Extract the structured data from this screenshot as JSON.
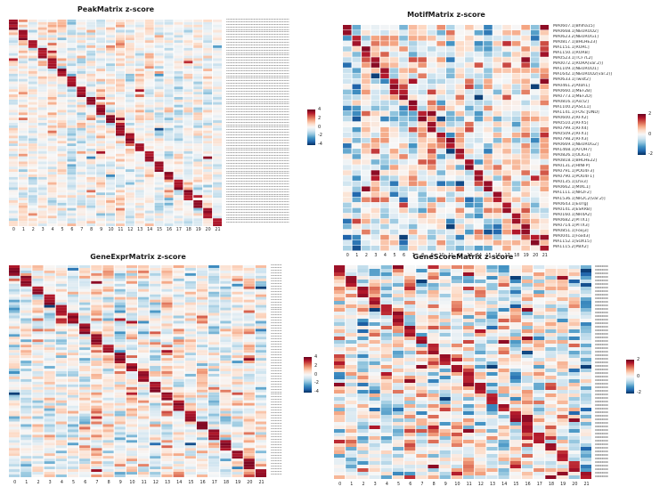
{
  "figure": {
    "background_color": "#ffffff",
    "panel_count": 4
  },
  "colormap_stops": [
    "#053061",
    "#2166ac",
    "#4393c3",
    "#92c5de",
    "#d1e5f0",
    "#f7f7f7",
    "#fddbc7",
    "#f4a582",
    "#d6604d",
    "#b2182b",
    "#67001f"
  ],
  "chart_data": [
    {
      "type": "heatmap",
      "panel": "peak-matrix",
      "title": "PeakMatrix z-score",
      "n_cols": 22,
      "n_rows": 80,
      "x_tick_labels": [
        "0",
        "1",
        "2",
        "3",
        "4",
        "5",
        "6",
        "7",
        "8",
        "9",
        "10",
        "11",
        "12",
        "13",
        "14",
        "15",
        "16",
        "17",
        "18",
        "19",
        "20",
        "21"
      ],
      "row_labels_legible": false,
      "row_label_placeholder": "xxxxxxxxxxxxxxxxxxxxxxxxxxxxxxxxxxxxxxxxxxxxxx",
      "colorbar_ticks": [
        4,
        2,
        0,
        -2,
        -4
      ],
      "zlim": [
        -4.5,
        4.5
      ],
      "structure": "block-diagonal dark-red marker peaks per cluster on pale blue/white background",
      "render_hints": {
        "seed": 11,
        "noise_sd": 0.5,
        "col_bias_sd": 0.22,
        "coarse_mix": 0.3,
        "outlier_p": 0.05,
        "diag_z": 4.3,
        "row_gap": 0
      }
    },
    {
      "type": "heatmap",
      "panel": "motif-matrix",
      "title": "MotifMatrix z-score",
      "n_cols": 22,
      "n_rows": 42,
      "x_tick_labels": [
        "0",
        "1",
        "2",
        "3",
        "4",
        "5",
        "6",
        "7",
        "8",
        "9",
        "10",
        "11",
        "12",
        "13",
        "14",
        "15",
        "16",
        "17",
        "18",
        "19",
        "20",
        "21"
      ],
      "row_labels_legible": true,
      "row_labels": [
        "MA0607.1[Bhlha15]",
        "MA0668.1[NEUROD2]",
        "MA0623.2[NEUROG1]",
        "MA0817.1[BHLHE23]",
        "MA1151.1[RORC]",
        "MA1150.1[RORB]",
        "MA0523.1[TCF7L2]",
        "MA0072.1[RORA(var.2)]",
        "MA1109.1[NEUROD1]",
        "MA1642.1[NEUROD2(var.2)]",
        "MA0633.1[Twist2]",
        "MA0461.2[Atoh1]",
        "MA0660.1[MEF2B]",
        "MA0773.1[MEF2D]",
        "MA0816.1[Ascl2]",
        "MA1100.2[ASCL1]",
        "MA1141.1[FOS::JUND]",
        "MA0600.2[RFX2]",
        "MA0510.2[RFX5]",
        "MA0799.1[RFX4]",
        "MA0509.2[RFX1]",
        "MA0798.2[RFX3]",
        "MA0669.1[NEUROG2]",
        "MA1468.1[ATOH7]",
        "MA0826.1[OLIG1]",
        "MA0818.1[BHLHE22]",
        "MA0131.2[HINFP]",
        "MA0791.1[POU4F3]",
        "MA0790.1[POU4F1]",
        "MA0135.1[Lhx3]",
        "MA0662.1[MIXL1]",
        "MA1111.1[NR2F2]",
        "MA1536.1[NR2C2(var.2)]",
        "MA0643.1[Esrrg]",
        "MA0141.3[ESRRB]",
        "MA0160.1[NR4A2]",
        "MA0682.2[PITX1]",
        "MA0714.1[PITX3]",
        "MA0851.1[Foxj3]",
        "MA0041.1[Foxd3]",
        "MA1152.1[SOX15]",
        "MA1115.2[PBX2]"
      ],
      "colorbar_ticks": [
        2,
        0,
        -2
      ],
      "zlim": [
        -2.8,
        2.8
      ],
      "structure": "blocky diverging red/blue motif deviations with near-diagonal dark-red enrichment blocks",
      "render_hints": {
        "seed": 7,
        "noise_sd": 0.9,
        "col_bias_sd": 0.5,
        "coarse_mix": 0.55,
        "outlier_p": 0.08,
        "diag_z": 2.6,
        "row_gap": 0.5
      }
    },
    {
      "type": "heatmap",
      "panel": "gene-expr-matrix",
      "title": "GeneExprMatrix z-score",
      "n_cols": 22,
      "n_rows": 80,
      "x_tick_labels": [
        "0",
        "1",
        "2",
        "3",
        "4",
        "5",
        "6",
        "7",
        "8",
        "9",
        "10",
        "11",
        "12",
        "13",
        "14",
        "15",
        "16",
        "17",
        "18",
        "19",
        "20",
        "21"
      ],
      "row_labels_legible": false,
      "row_label_placeholder": "xxxxxxxx",
      "colorbar_ticks": [
        4,
        2,
        0,
        -2,
        -4
      ],
      "zlim": [
        -4.5,
        4.5
      ],
      "structure": "block-diagonal dark-red marker genes per cluster on pale background",
      "render_hints": {
        "seed": 23,
        "noise_sd": 0.65,
        "col_bias_sd": 0.2,
        "coarse_mix": 0.35,
        "outlier_p": 0.07,
        "diag_z": 4.3,
        "row_gap": 0
      }
    },
    {
      "type": "heatmap",
      "panel": "gene-score-matrix",
      "title": "GeneScoreMatrix z-score",
      "n_cols": 22,
      "n_rows": 60,
      "x_tick_labels": [
        "0",
        "1",
        "2",
        "3",
        "4",
        "5",
        "6",
        "7",
        "8",
        "9",
        "10",
        "11",
        "12",
        "13",
        "14",
        "15",
        "16",
        "17",
        "18",
        "19",
        "20",
        "21"
      ],
      "row_labels_legible": false,
      "row_label_placeholder": "xxxxxxxx",
      "colorbar_ticks": [
        2,
        0,
        -2
      ],
      "zlim": [
        -2.8,
        2.8
      ],
      "structure": "diffuse red/blue gene-score pattern with diagonal dark-red blocks, darkest at bottom-right",
      "render_hints": {
        "seed": 5,
        "noise_sd": 0.95,
        "col_bias_sd": 0.4,
        "coarse_mix": 0.5,
        "outlier_p": 0.08,
        "diag_z": 2.5,
        "row_gap": 0
      }
    }
  ]
}
